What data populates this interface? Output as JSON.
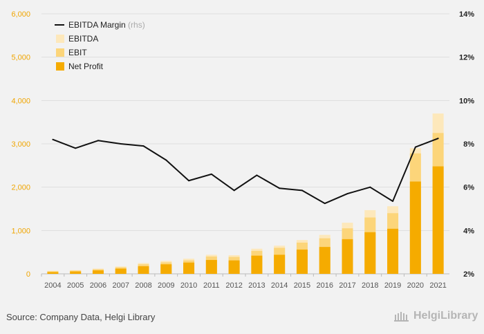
{
  "source_text": "Source: Company Data, Helgi Library",
  "brand": "HelgiLibrary",
  "colors": {
    "net_profit": "#f5ab00",
    "ebit": "#fcd57a",
    "ebitda": "#fde8bb",
    "margin_line": "#111111",
    "left_axis": "#f0a500",
    "grid": "#dddddd"
  },
  "chart_data": {
    "type": "bar",
    "stacked_overlay": true,
    "categories": [
      "2004",
      "2005",
      "2006",
      "2007",
      "2008",
      "2009",
      "2010",
      "2011",
      "2012",
      "2013",
      "2014",
      "2015",
      "2016",
      "2017",
      "2018",
      "2019",
      "2020",
      "2021"
    ],
    "series": [
      {
        "name": "EBITDA",
        "axis": "left",
        "values": [
          70,
          85,
          120,
          170,
          250,
          300,
          350,
          440,
          430,
          580,
          650,
          780,
          900,
          1180,
          1470,
          1560,
          2900,
          3700
        ]
      },
      {
        "name": "EBIT",
        "axis": "left",
        "values": [
          60,
          75,
          105,
          150,
          220,
          265,
          310,
          400,
          390,
          530,
          600,
          720,
          820,
          1050,
          1300,
          1400,
          2780,
          3250
        ]
      },
      {
        "name": "Net Profit",
        "axis": "left",
        "values": [
          40,
          55,
          80,
          120,
          175,
          220,
          260,
          320,
          310,
          420,
          440,
          560,
          620,
          800,
          960,
          1040,
          2130,
          2480
        ]
      },
      {
        "name": "EBITDA Margin",
        "name_suffix": "(rhs)",
        "axis": "right",
        "type": "line",
        "values": [
          8.2,
          7.8,
          8.15,
          8.0,
          7.9,
          7.25,
          6.3,
          6.6,
          5.85,
          6.55,
          5.95,
          5.85,
          5.25,
          5.7,
          6.0,
          5.35,
          7.85,
          8.25
        ]
      }
    ],
    "y_left": {
      "ticks": [
        "0",
        "1,000",
        "2,000",
        "3,000",
        "4,000",
        "5,000",
        "6,000"
      ],
      "range": [
        0,
        6000
      ]
    },
    "y_right": {
      "ticks": [
        "2%",
        "4%",
        "6%",
        "8%",
        "10%",
        "12%",
        "14%"
      ],
      "range": [
        2,
        14
      ]
    },
    "legend_position": "top-left",
    "grid": true
  }
}
